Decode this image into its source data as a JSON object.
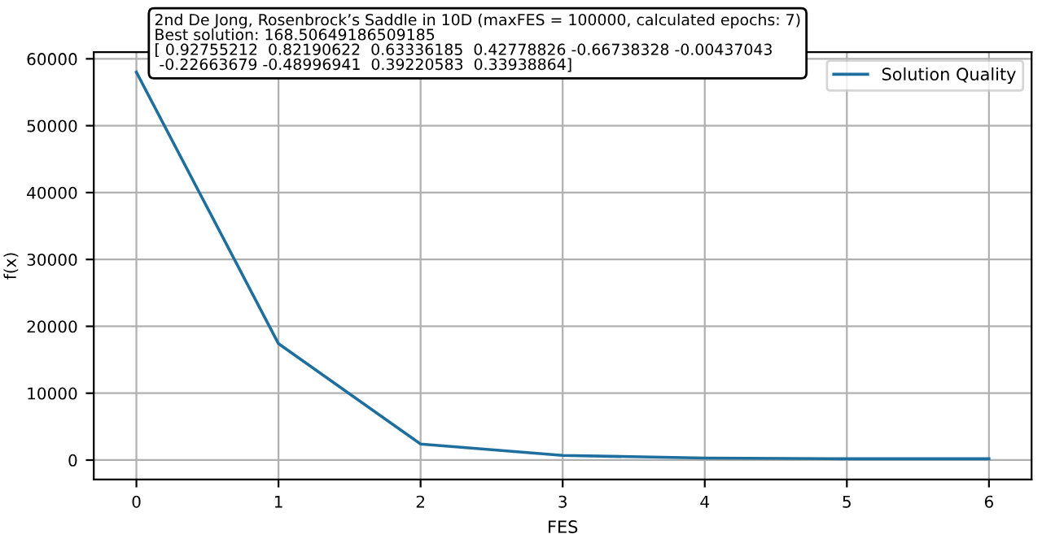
{
  "chart_data": {
    "type": "line",
    "title": "2nd De Jong, Rosenbrock’s Saddle in 10D (maxFES = 100000, calculated epochs: 7)\nBest solution: 168.50649186509185\n[ 0.92755212  0.82190622  0.63336185  0.42778826 -0.66738328 -0.00437043\n -0.22663679 -0.48996941  0.39220583  0.33938864]",
    "xlabel": "FES",
    "ylabel": "f(x)",
    "x": [
      0,
      1,
      2,
      3,
      4,
      5,
      6
    ],
    "series": [
      {
        "name": "Solution Quality",
        "color": "#1f6f9e",
        "values": [
          58000,
          17400,
          2400,
          700,
          300,
          200,
          200
        ]
      }
    ],
    "xlim": [
      -0.3,
      6.3
    ],
    "ylim": [
      -2900,
      61000
    ],
    "xticks": [
      0,
      1,
      2,
      3,
      4,
      5,
      6
    ],
    "yticks": [
      0,
      10000,
      20000,
      30000,
      40000,
      50000,
      60000
    ],
    "grid": true,
    "legend": "top right",
    "marker": "none",
    "line_style": "solid"
  }
}
